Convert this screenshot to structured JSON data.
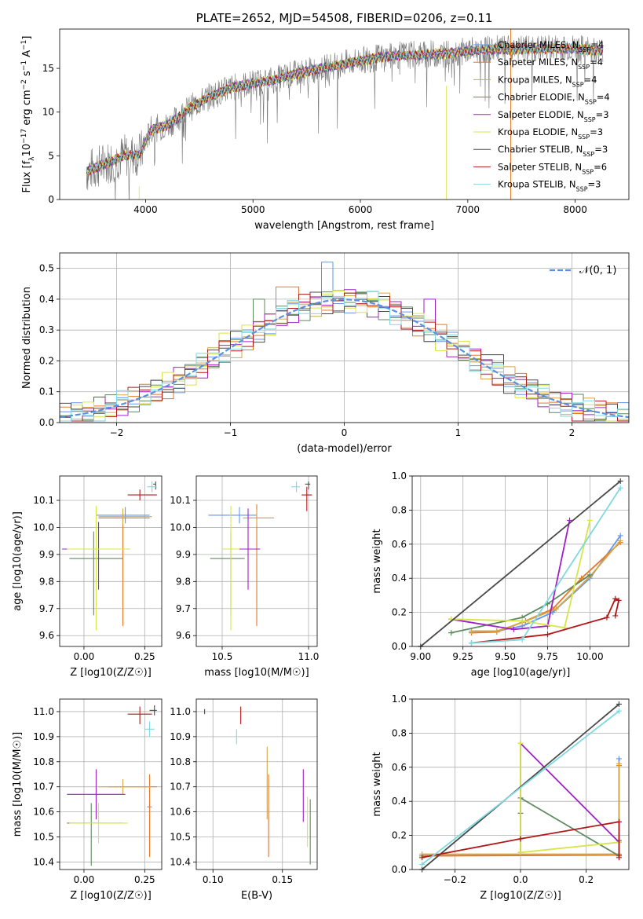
{
  "series": [
    {
      "name": "Chabrier MILES, N_SSP=4",
      "color": "#6495ED"
    },
    {
      "name": "Salpeter MILES, N_SSP=4",
      "color": "#E87828"
    },
    {
      "name": "Kroupa MILES, N_SSP=4",
      "color": "#D4A84A"
    },
    {
      "name": "Chabrier ELODIE, N_SSP=4",
      "color": "#5E8A5E"
    },
    {
      "name": "Salpeter ELODIE, N_SSP=3",
      "color": "#A020C8"
    },
    {
      "name": "Kroupa ELODIE, N_SSP=3",
      "color": "#D6E64A"
    },
    {
      "name": "Chabrier STELIB, N_SSP=3",
      "color": "#4A4A4A"
    },
    {
      "name": "Salpeter STELIB, N_SSP=6",
      "color": "#B01818"
    },
    {
      "name": "Kroupa STELIB, N_SSP=3",
      "color": "#80D8E0"
    }
  ],
  "chart_data": [
    {
      "id": "spectrum",
      "type": "line",
      "title": "PLATE=2652, MJD=54508, FIBERID=0206, z=0.11",
      "xlabel": "wavelength [Angstrom, rest frame]",
      "ylabel": "Flux [f_λ 10^-17 erg cm^-2 s^-1 A^-1]",
      "xlim": [
        3200,
        8500
      ],
      "ylim": [
        0,
        19.5
      ],
      "xticks": [
        4000,
        5000,
        6000,
        7000,
        8000
      ],
      "yticks": [
        0,
        5,
        10,
        15
      ],
      "grid": false,
      "legend": "right",
      "model_x": [
        3450,
        3600,
        3800,
        3950,
        4050,
        4200,
        4300,
        4400,
        4600,
        4800,
        5000,
        5200,
        5400,
        5600,
        5800,
        6000,
        6200,
        6400,
        6600,
        6800,
        7000,
        7200,
        7400,
        7600,
        7800,
        8000,
        8200
      ],
      "model_y": [
        3.2,
        4.0,
        5.0,
        5.2,
        8.0,
        8.5,
        9.3,
        10.4,
        11.8,
        12.8,
        13.3,
        13.7,
        14.4,
        14.9,
        15.4,
        15.9,
        16.3,
        16.5,
        16.6,
        16.7,
        17.0,
        17.2,
        17.2,
        17.2,
        17.3,
        17.3,
        17.0
      ]
    },
    {
      "id": "residual_hist",
      "type": "bar",
      "xlabel": "(data-model)/error",
      "ylabel": "Normed distribution",
      "xlim": [
        -2.5,
        2.5
      ],
      "ylim": [
        0,
        0.55
      ],
      "xticks": [
        -2,
        -1,
        0,
        1,
        2
      ],
      "yticks": [
        0.0,
        0.1,
        0.2,
        0.3,
        0.4,
        0.5
      ],
      "grid": true,
      "legend": "top-right",
      "reference_label": "𝒩(0, 1)",
      "bin_width": 0.1,
      "spikes": [
        {
          "x": -0.15,
          "y": 0.52
        },
        {
          "x": -0.5,
          "y": 0.44
        },
        {
          "x": 0.35,
          "y": 0.42
        },
        {
          "x": -0.75,
          "y": 0.4
        },
        {
          "x": 0.75,
          "y": 0.4
        },
        {
          "x": -1.05,
          "y": 0.29
        },
        {
          "x": 1.3,
          "y": 0.22
        }
      ]
    },
    {
      "id": "age_vs_Z",
      "type": "scatter",
      "xlabel": "Z [log10(Z/Z☉)]",
      "ylabel": "age  [log10(age/yr)]",
      "xlim": [
        -0.1,
        0.32
      ],
      "ylim": [
        9.56,
        10.19
      ],
      "xticks": [
        0.0,
        0.25
      ],
      "yticks": [
        9.6,
        9.7,
        9.8,
        9.9,
        10.0,
        10.1
      ],
      "points": [
        {
          "s": 0,
          "x": 0.17,
          "y": 10.045,
          "xerr": [
            0.12,
            0.1
          ],
          "yerr": [
            0.03,
            0.03
          ]
        },
        {
          "s": 1,
          "x": 0.16,
          "y": 10.035,
          "xerr": [
            0.1,
            0.11
          ],
          "yerr": [
            0.4,
            0.02
          ]
        },
        {
          "s": 2,
          "x": 0.16,
          "y": 10.04,
          "xerr": [
            0.1,
            0.12
          ],
          "yerr": [
            0.03,
            0.03
          ]
        },
        {
          "s": 3,
          "x": 0.04,
          "y": 9.885,
          "xerr": [
            0.1,
            0.12
          ],
          "yerr": [
            0.21,
            0.1
          ]
        },
        {
          "s": 4,
          "x": 0.06,
          "y": 9.92,
          "xerr": [
            0.15,
            0.1
          ],
          "yerr": [
            0.15,
            0.1
          ]
        },
        {
          "s": 5,
          "x": 0.05,
          "y": 9.92,
          "xerr": [
            0.12,
            0.14
          ],
          "yerr": [
            0.3,
            0.16
          ]
        },
        {
          "s": 6,
          "x": 0.295,
          "y": 10.16,
          "xerr": [
            0.01,
            0.0
          ],
          "yerr": [
            0.02,
            0.01
          ]
        },
        {
          "s": 7,
          "x": 0.23,
          "y": 10.12,
          "xerr": [
            0.05,
            0.07
          ],
          "yerr": [
            0.02,
            0.02
          ]
        },
        {
          "s": 8,
          "x": 0.28,
          "y": 10.15,
          "xerr": [
            0.02,
            0.02
          ],
          "yerr": [
            0.02,
            0.02
          ]
        }
      ]
    },
    {
      "id": "age_vs_mass",
      "type": "scatter",
      "xlabel": "mass [log10(M/M☉)]",
      "ylabel": "",
      "xlim": [
        10.35,
        11.05
      ],
      "ylim": [
        9.56,
        10.19
      ],
      "xticks": [
        10.5,
        11.0
      ],
      "yticks": [
        9.6,
        9.7,
        9.8,
        9.9,
        10.0,
        10.1
      ],
      "points": [
        {
          "s": 0,
          "x": 10.6,
          "y": 10.045,
          "xerr": [
            0.18,
            0.1
          ],
          "yerr": [
            0.03,
            0.03
          ]
        },
        {
          "s": 1,
          "x": 10.7,
          "y": 10.035,
          "xerr": [
            0.05,
            0.1
          ],
          "yerr": [
            0.4,
            0.05
          ]
        },
        {
          "s": 2,
          "x": 10.7,
          "y": 10.035,
          "xerr": [
            0.08,
            0.1
          ],
          "yerr": [
            0.03,
            0.03
          ]
        },
        {
          "s": 3,
          "x": 10.55,
          "y": 9.885,
          "xerr": [
            0.12,
            0.08
          ],
          "yerr": [
            0.21,
            0.1
          ]
        },
        {
          "s": 4,
          "x": 10.65,
          "y": 9.92,
          "xerr": [
            0.1,
            0.07
          ],
          "yerr": [
            0.15,
            0.15
          ]
        },
        {
          "s": 5,
          "x": 10.55,
          "y": 9.92,
          "xerr": [
            0.05,
            0.05
          ],
          "yerr": [
            0.3,
            0.16
          ]
        },
        {
          "s": 6,
          "x": 11.0,
          "y": 10.16,
          "xerr": [
            0.02,
            0.01
          ],
          "yerr": [
            0.02,
            0.01
          ]
        },
        {
          "s": 7,
          "x": 10.99,
          "y": 10.12,
          "xerr": [
            0.03,
            0.03
          ],
          "yerr": [
            0.06,
            0.03
          ]
        },
        {
          "s": 8,
          "x": 10.93,
          "y": 10.15,
          "xerr": [
            0.03,
            0.02
          ],
          "yerr": [
            0.02,
            0.02
          ]
        }
      ]
    },
    {
      "id": "mass_weight_vs_age",
      "type": "line",
      "xlabel": "age  [log10(age/yr)]",
      "ylabel": "mass weight",
      "xlim": [
        8.95,
        10.23
      ],
      "ylim": [
        0,
        1.0
      ],
      "xticks": [
        9.0,
        9.25,
        9.5,
        9.75,
        10.0
      ],
      "yticks": [
        0.0,
        0.2,
        0.4,
        0.6,
        0.8,
        1.0
      ],
      "grid": true,
      "lines": [
        {
          "s": 0,
          "x": [
            9.3,
            9.45,
            9.6,
            9.78,
            10.0,
            10.18
          ],
          "y": [
            0.09,
            0.09,
            0.12,
            0.2,
            0.4,
            0.65
          ]
        },
        {
          "s": 1,
          "x": [
            9.3,
            9.45,
            9.62,
            9.78,
            9.95,
            10.18
          ],
          "y": [
            0.08,
            0.085,
            0.15,
            0.22,
            0.4,
            0.61
          ]
        },
        {
          "s": 2,
          "x": [
            9.3,
            9.45,
            9.6,
            9.8,
            10.0,
            10.18
          ],
          "y": [
            0.09,
            0.09,
            0.14,
            0.22,
            0.41,
            0.62
          ]
        },
        {
          "s": 3,
          "x": [
            9.18,
            9.6,
            9.75,
            10.0
          ],
          "y": [
            0.08,
            0.17,
            0.25,
            0.42
          ]
        },
        {
          "s": 4,
          "x": [
            9.18,
            9.55,
            9.75,
            9.88
          ],
          "y": [
            0.16,
            0.1,
            0.12,
            0.74
          ]
        },
        {
          "s": 5,
          "x": [
            9.18,
            9.6,
            9.85,
            10.0
          ],
          "y": [
            0.16,
            0.15,
            0.11,
            0.74
          ]
        },
        {
          "s": 6,
          "x": [
            9.0,
            10.18
          ],
          "y": [
            0.0,
            0.97
          ]
        },
        {
          "s": 7,
          "x": [
            9.3,
            9.75,
            10.1,
            10.15,
            10.17,
            10.15
          ],
          "y": [
            0.02,
            0.07,
            0.17,
            0.28,
            0.27,
            0.18
          ]
        },
        {
          "s": 8,
          "x": [
            9.3,
            9.6,
            10.18
          ],
          "y": [
            0.02,
            0.04,
            0.93
          ]
        }
      ]
    },
    {
      "id": "mass_vs_Z",
      "type": "scatter",
      "xlabel": "Z [log10(Z/Z☉)]",
      "ylabel": "mass [log10(M/M☉)]",
      "xlim": [
        -0.1,
        0.32
      ],
      "ylim": [
        10.37,
        11.05
      ],
      "xticks": [
        0.0,
        0.25
      ],
      "yticks": [
        10.4,
        10.5,
        10.6,
        10.7,
        10.8,
        10.9,
        11.0
      ],
      "points": [
        {
          "s": 0,
          "x": 0.27,
          "y": 10.62,
          "xerr": [
            0.01,
            0.01
          ],
          "yerr": [
            0.2,
            0.03
          ]
        },
        {
          "s": 1,
          "x": 0.27,
          "y": 10.7,
          "xerr": [
            0.17,
            0.03
          ],
          "yerr": [
            0.28,
            0.05
          ]
        },
        {
          "s": 2,
          "x": 0.16,
          "y": 10.7,
          "xerr": [
            0.1,
            0.12
          ],
          "yerr": [
            0.03,
            0.03
          ]
        },
        {
          "s": 3,
          "x": 0.03,
          "y": 10.555,
          "xerr": [
            0.1,
            0.13
          ],
          "yerr": [
            0.17,
            0.08
          ]
        },
        {
          "s": 4,
          "x": 0.05,
          "y": 10.67,
          "xerr": [
            0.12,
            0.12
          ],
          "yerr": [
            0.1,
            0.1
          ]
        },
        {
          "s": 5,
          "x": 0.06,
          "y": 10.555,
          "xerr": [
            0.12,
            0.12
          ],
          "yerr": [
            0.08,
            0.08
          ]
        },
        {
          "s": 6,
          "x": 0.29,
          "y": 11.005,
          "xerr": [
            0.02,
            0.01
          ],
          "yerr": [
            0.02,
            0.02
          ]
        },
        {
          "s": 7,
          "x": 0.23,
          "y": 10.99,
          "xerr": [
            0.05,
            0.05
          ],
          "yerr": [
            0.04,
            0.03
          ]
        },
        {
          "s": 8,
          "x": 0.27,
          "y": 10.93,
          "xerr": [
            0.02,
            0.02
          ],
          "yerr": [
            0.03,
            0.03
          ]
        }
      ]
    },
    {
      "id": "mass_vs_EBV",
      "type": "scatter",
      "xlabel": "E(B-V)",
      "ylabel": "",
      "xlim": [
        0.088,
        0.175
      ],
      "ylim": [
        10.37,
        11.05
      ],
      "xticks": [
        0.1,
        0.15
      ],
      "yticks": [
        10.4,
        10.5,
        10.6,
        10.7,
        10.8,
        10.9,
        11.0
      ],
      "points": [
        {
          "s": 0,
          "x": 0.14,
          "y": 10.52,
          "xerr": [
            0,
            0
          ],
          "yerr": [
            0.1,
            0.1
          ]
        },
        {
          "s": 1,
          "x": 0.14,
          "y": 10.6,
          "xerr": [
            0,
            0
          ],
          "yerr": [
            0.18,
            0.15
          ]
        },
        {
          "s": 2,
          "x": 0.139,
          "y": 10.7,
          "xerr": [
            0,
            0
          ],
          "yerr": [
            0.13,
            0.16
          ]
        },
        {
          "s": 3,
          "x": 0.17,
          "y": 10.52,
          "xerr": [
            0,
            0
          ],
          "yerr": [
            0.13,
            0.13
          ]
        },
        {
          "s": 4,
          "x": 0.165,
          "y": 10.65,
          "xerr": [
            0,
            0
          ],
          "yerr": [
            0.09,
            0.12
          ]
        },
        {
          "s": 5,
          "x": 0.168,
          "y": 10.56,
          "xerr": [
            0,
            0
          ],
          "yerr": [
            0.1,
            0.1
          ]
        },
        {
          "s": 6,
          "x": 0.094,
          "y": 11.0,
          "xerr": [
            0,
            0
          ],
          "yerr": [
            0.01,
            0.01
          ]
        },
        {
          "s": 7,
          "x": 0.12,
          "y": 10.99,
          "xerr": [
            0,
            0
          ],
          "yerr": [
            0.04,
            0.03
          ]
        },
        {
          "s": 8,
          "x": 0.117,
          "y": 10.9,
          "xerr": [
            0,
            0
          ],
          "yerr": [
            0.03,
            0.03
          ]
        }
      ]
    },
    {
      "id": "mass_weight_vs_Z",
      "type": "line",
      "xlabel": "Z [log10(Z/Z☉)]",
      "ylabel": "mass weight",
      "xlim": [
        -0.33,
        0.33
      ],
      "ylim": [
        0,
        1.0
      ],
      "xticks": [
        -0.2,
        0.0,
        0.2
      ],
      "yticks": [
        0.0,
        0.2,
        0.4,
        0.6,
        0.8,
        1.0
      ],
      "grid": true,
      "lines": [
        {
          "s": 0,
          "x": [
            -0.3,
            0.3,
            0.3
          ],
          "y": [
            0.08,
            0.09,
            0.65
          ]
        },
        {
          "s": 1,
          "x": [
            -0.3,
            0.3,
            0.3
          ],
          "y": [
            0.08,
            0.085,
            0.61
          ]
        },
        {
          "s": 2,
          "x": [
            -0.3,
            0.3,
            0.3
          ],
          "y": [
            0.09,
            0.09,
            0.62
          ]
        },
        {
          "s": 3,
          "x": [
            0.0,
            0.0,
            0.3,
            0.3
          ],
          "y": [
            0.33,
            0.42,
            0.08,
            0.17
          ]
        },
        {
          "s": 4,
          "x": [
            0.0,
            0.0,
            0.3
          ],
          "y": [
            0.1,
            0.74,
            0.16
          ]
        },
        {
          "s": 5,
          "x": [
            0.0,
            0.0,
            0.3
          ],
          "y": [
            0.74,
            0.1,
            0.16
          ]
        },
        {
          "s": 6,
          "x": [
            -0.3,
            0.3
          ],
          "y": [
            0.0,
            0.97
          ]
        },
        {
          "s": 7,
          "x": [
            -0.3,
            0.0,
            0.3,
            0.3
          ],
          "y": [
            0.07,
            0.18,
            0.28,
            0.07
          ]
        },
        {
          "s": 8,
          "x": [
            -0.3,
            0.3
          ],
          "y": [
            0.03,
            0.93
          ]
        }
      ]
    }
  ]
}
